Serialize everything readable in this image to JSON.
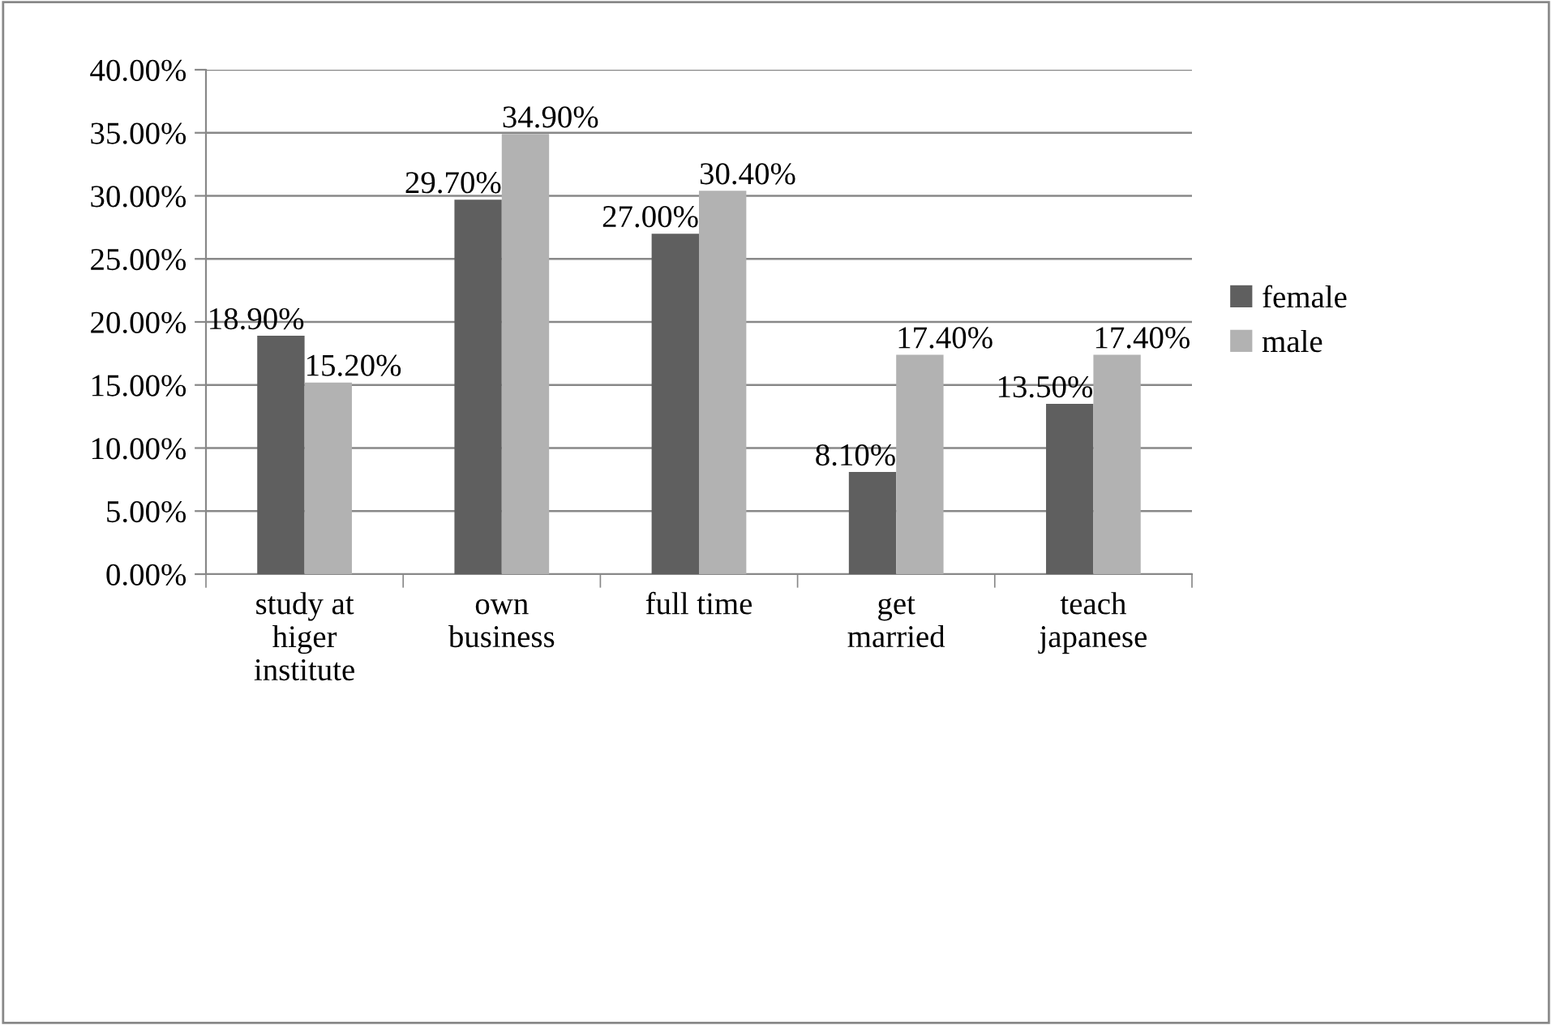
{
  "chart_data": {
    "type": "bar",
    "categories": [
      "study at\nhiger\ninstitute",
      "own\nbusiness",
      "full time",
      "get\nmarried",
      "teach\njapanese"
    ],
    "series": [
      {
        "name": "female",
        "color": "#5f5f5f",
        "values": [
          18.9,
          29.7,
          27.0,
          8.1,
          13.5
        ],
        "value_labels": [
          "18.90%",
          "29.70%",
          "27.00%",
          "8.10%",
          "13.50%"
        ]
      },
      {
        "name": "male",
        "color": "#b2b2b2",
        "values": [
          15.2,
          34.9,
          30.4,
          17.4,
          17.4
        ],
        "value_labels": [
          "15.20%",
          "34.90%",
          "30.40%",
          "17.40%",
          "17.40%"
        ]
      }
    ],
    "ylim": [
      0,
      40
    ],
    "yticks": [
      {
        "value": 0,
        "label": "0.00%"
      },
      {
        "value": 5,
        "label": "5.00%"
      },
      {
        "value": 10,
        "label": "10.00%"
      },
      {
        "value": 15,
        "label": "15.00%"
      },
      {
        "value": 20,
        "label": "20.00%"
      },
      {
        "value": 25,
        "label": "25.00%"
      },
      {
        "value": 30,
        "label": "30.00%"
      },
      {
        "value": 35,
        "label": "35.00%"
      },
      {
        "value": 40,
        "label": "40.00%"
      }
    ],
    "grid": "y",
    "legend": "right"
  }
}
